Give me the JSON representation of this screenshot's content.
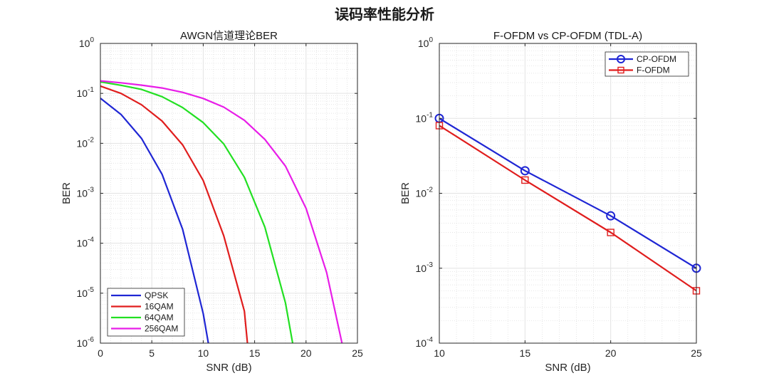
{
  "figure": {
    "title": "误码率性能分析"
  },
  "chart_data": [
    {
      "type": "line",
      "title": "AWGN信道理论BER",
      "xlabel": "SNR (dB)",
      "ylabel": "BER",
      "xlim": [
        0,
        25
      ],
      "ylim": [
        1e-06,
        1
      ],
      "yscale": "log",
      "grid": true,
      "minor_grid": true,
      "xticks": [
        0,
        5,
        10,
        15,
        20,
        25
      ],
      "yticks_exp": [
        -6,
        -5,
        -4,
        -3,
        -2,
        -1,
        0
      ],
      "legend_position": "bottom-left",
      "series": [
        {
          "name": "QPSK",
          "color": "#1f26d4",
          "marker": "none",
          "x": [
            0,
            2,
            4,
            6,
            8,
            10,
            10.5
          ],
          "y": [
            0.08,
            0.038,
            0.0125,
            0.0024,
            0.00019,
            3.9e-06,
            1e-06
          ]
        },
        {
          "name": "16QAM",
          "color": "#e01d1d",
          "marker": "none",
          "x": [
            0,
            2,
            4,
            6,
            8,
            10,
            12,
            14,
            14.3
          ],
          "y": [
            0.14,
            0.1,
            0.059,
            0.028,
            0.0093,
            0.0018,
            0.00014,
            4.4e-06,
            1e-06
          ]
        },
        {
          "name": "64QAM",
          "color": "#22e022",
          "marker": "none",
          "x": [
            0,
            2,
            4,
            6,
            8,
            10,
            12,
            14,
            16,
            18,
            18.7
          ],
          "y": [
            0.17,
            0.145,
            0.12,
            0.086,
            0.052,
            0.026,
            0.0097,
            0.0021,
            0.00021,
            6.4e-06,
            1e-06
          ]
        },
        {
          "name": "256QAM",
          "color": "#e81de8",
          "marker": "none",
          "x": [
            0,
            2,
            4,
            6,
            8,
            10,
            12,
            14,
            16,
            18,
            20,
            22,
            23.5
          ],
          "y": [
            0.178,
            0.163,
            0.146,
            0.128,
            0.105,
            0.079,
            0.053,
            0.029,
            0.012,
            0.0035,
            0.0005,
            2.6e-05,
            1e-06
          ]
        }
      ]
    },
    {
      "type": "line",
      "title": "F-OFDM vs CP-OFDM (TDL-A)",
      "xlabel": "SNR (dB)",
      "ylabel": "BER",
      "xlim": [
        10,
        25
      ],
      "ylim": [
        0.0001,
        1
      ],
      "yscale": "log",
      "grid": true,
      "minor_grid": true,
      "xticks": [
        10,
        15,
        20,
        25
      ],
      "yticks_exp": [
        -4,
        -3,
        -2,
        -1,
        0
      ],
      "legend_position": "top-right",
      "series": [
        {
          "name": "CP-OFDM",
          "color": "#1f26d4",
          "marker": "circle",
          "x": [
            10,
            15,
            20,
            25
          ],
          "y": [
            0.1,
            0.02,
            0.005,
            0.001
          ]
        },
        {
          "name": "F-OFDM",
          "color": "#e01d1d",
          "marker": "square",
          "x": [
            10,
            15,
            20,
            25
          ],
          "y": [
            0.08,
            0.015,
            0.003,
            0.0005
          ]
        }
      ]
    }
  ]
}
